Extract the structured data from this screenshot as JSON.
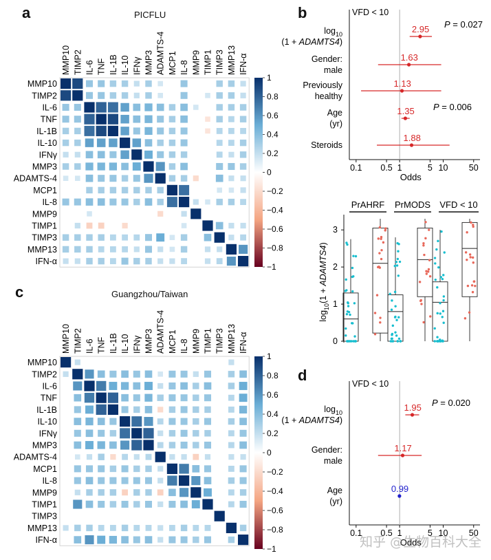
{
  "panels": {
    "a": {
      "letter": "a",
      "title": "PICFLU"
    },
    "b": {
      "letter": "b"
    },
    "c": {
      "letter": "c",
      "title": "Guangzhou/Taiwan"
    },
    "d": {
      "letter": "d"
    }
  },
  "watermark": "知乎 @生物百科大全",
  "chart_data": [
    {
      "id": "heatmap-picflu",
      "type": "heatmap",
      "title": "PICFLU",
      "labels": [
        "MMP10",
        "TIMP2",
        "IL-6",
        "TNF",
        "IL-1B",
        "IL-10",
        "IFNγ",
        "MMP3",
        "ADAMTS-4",
        "MCP1",
        "IL-8",
        "MMP9",
        "TIMP1",
        "TIMP3",
        "MMP13",
        "IFN-α"
      ],
      "scale": {
        "min": -1,
        "max": 1,
        "ticks": [
          "1",
          "0.8",
          "0.6",
          "0.4",
          "0.2",
          "0",
          "−0.2",
          "−0.4",
          "−0.6",
          "−0.8",
          "−1"
        ]
      },
      "colors": {
        "positive": "#08306b",
        "negative": "#67001f",
        "neutral": "#ffffff"
      },
      "values": [
        [
          1,
          0.9,
          0.35,
          0.35,
          0.3,
          0.3,
          0.2,
          0.3,
          0.15,
          0,
          0.35,
          0,
          0,
          0.3,
          0.3,
          0.2
        ],
        [
          0.9,
          1,
          0.35,
          0.35,
          0.3,
          0.3,
          0.2,
          0.3,
          0.15,
          0,
          0.35,
          0,
          0.15,
          0.3,
          0.3,
          0.2
        ],
        [
          0.35,
          0.35,
          1,
          0.8,
          0.75,
          0.55,
          0.4,
          0.45,
          0.4,
          0.3,
          0.4,
          0.15,
          0,
          0.3,
          0.3,
          0.3
        ],
        [
          0.35,
          0.35,
          0.8,
          1,
          0.9,
          0.55,
          0.4,
          0.45,
          0.35,
          0.3,
          0.4,
          0,
          -0.15,
          0.3,
          0.25,
          0.3
        ],
        [
          0.3,
          0.3,
          0.75,
          0.9,
          1,
          0.55,
          0.35,
          0.45,
          0.35,
          0.3,
          0.35,
          0,
          -0.15,
          0.25,
          0.25,
          0.25
        ],
        [
          0.3,
          0.3,
          0.55,
          0.55,
          0.55,
          1,
          0.55,
          0.4,
          0.3,
          0.3,
          0.35,
          0,
          0,
          0.25,
          0.25,
          0.3
        ],
        [
          0.2,
          0.2,
          0.4,
          0.4,
          0.35,
          0.55,
          1,
          0.5,
          0.35,
          0.3,
          0.3,
          0,
          0,
          0.25,
          0.2,
          0.3
        ],
        [
          0.3,
          0.3,
          0.45,
          0.45,
          0.45,
          0.4,
          0.5,
          1,
          0.6,
          0.3,
          0.4,
          0,
          0,
          0.35,
          0.35,
          0.3
        ],
        [
          0.15,
          0.15,
          0.4,
          0.35,
          0.35,
          0.3,
          0.35,
          0.6,
          1,
          0.3,
          0.3,
          -0.2,
          0,
          0.4,
          0.2,
          0.2
        ],
        [
          0,
          0,
          0.3,
          0.3,
          0.3,
          0.3,
          0.3,
          0.3,
          0.3,
          1,
          0.75,
          0,
          0,
          0.15,
          0.15,
          0.2
        ],
        [
          0.35,
          0.35,
          0.4,
          0.4,
          0.35,
          0.35,
          0.3,
          0.4,
          0.3,
          0.75,
          1,
          0.2,
          0.15,
          0.3,
          0.3,
          0.25
        ],
        [
          0,
          0,
          0.15,
          0,
          0,
          0,
          0,
          0,
          -0.2,
          0,
          0.2,
          1,
          0,
          0,
          0,
          0
        ],
        [
          0,
          0.2,
          -0.25,
          -0.25,
          0,
          -0.2,
          0,
          0,
          0,
          0,
          0.15,
          0,
          1,
          0.4,
          0.2,
          0.2
        ],
        [
          0.3,
          0.3,
          0.3,
          0.3,
          0.25,
          0.25,
          0.25,
          0.35,
          0.5,
          0.15,
          0.3,
          0,
          0.4,
          1,
          0.2,
          0.25
        ],
        [
          0.3,
          0.3,
          0.3,
          0.25,
          0.25,
          0.25,
          0.2,
          0.35,
          0.2,
          0.15,
          0.3,
          0,
          0.2,
          0.2,
          1,
          0.6
        ],
        [
          0.2,
          0.2,
          0.3,
          0.3,
          0.25,
          0.35,
          0.3,
          0.3,
          0.2,
          0.2,
          0.25,
          0,
          0.2,
          0.25,
          0.6,
          1
        ]
      ]
    },
    {
      "id": "heatmap-guangzhou",
      "type": "heatmap",
      "title": "Guangzhou/Taiwan",
      "labels": [
        "MMP10",
        "TIMP2",
        "IL-6",
        "TNF",
        "IL-1B",
        "IL-10",
        "IFNγ",
        "MMP3",
        "ADAMTS-4",
        "MCP1",
        "IL-8",
        "MMP9",
        "TIMP1",
        "TIMP3",
        "MMP13",
        "IFN-α"
      ],
      "scale": {
        "min": -1,
        "max": 1,
        "ticks": [
          "1",
          "0.8",
          "0.6",
          "0.4",
          "0.2",
          "0",
          "−0.2",
          "−0.4",
          "−0.6",
          "−0.8",
          "−1"
        ]
      },
      "colors": {
        "positive": "#08306b",
        "negative": "#67001f",
        "neutral": "#ffffff"
      },
      "values": [
        [
          1,
          0.2,
          0,
          0,
          0,
          0,
          0,
          0,
          0,
          0,
          0,
          0,
          0,
          0,
          0.2,
          0
        ],
        [
          0.2,
          1,
          0.6,
          0.4,
          0.35,
          0.4,
          0.35,
          0.4,
          0.15,
          0.35,
          0.35,
          0.2,
          0.35,
          0,
          0.3,
          0.4
        ],
        [
          0,
          0.6,
          1,
          0.7,
          0.5,
          0.45,
          0.4,
          0.5,
          0.2,
          0.35,
          0.4,
          0.3,
          0.4,
          0,
          0.3,
          0.5
        ],
        [
          0,
          0.4,
          0.7,
          1,
          0.8,
          0.4,
          0.35,
          0.45,
          0.3,
          0.35,
          0.35,
          0.3,
          0.35,
          0,
          0.25,
          0.5
        ],
        [
          0,
          0.35,
          0.5,
          0.8,
          1,
          0.35,
          0.3,
          0.4,
          -0.2,
          0.3,
          0.35,
          0.3,
          0.3,
          0,
          0.25,
          0.45
        ],
        [
          0,
          0.4,
          0.45,
          0.4,
          0.35,
          1,
          0.75,
          0.6,
          0.25,
          0.35,
          0.35,
          0.3,
          0.35,
          0,
          0.3,
          0.4
        ],
        [
          0,
          0.35,
          0.4,
          0.35,
          0.3,
          0.75,
          1,
          0.8,
          0.2,
          0.3,
          0.35,
          0.3,
          0.3,
          0,
          0.25,
          0.35
        ],
        [
          0,
          0.4,
          0.5,
          0.45,
          0.4,
          0.6,
          0.8,
          1,
          0.25,
          0.3,
          0.35,
          0.3,
          0.35,
          0,
          0.25,
          0.4
        ],
        [
          0,
          0.15,
          0.2,
          0.3,
          -0.2,
          0.25,
          0.2,
          0.25,
          1,
          0.2,
          0.2,
          -0.25,
          0.2,
          0,
          0.2,
          0.2
        ],
        [
          0,
          0.35,
          0.35,
          0.35,
          0.3,
          0.35,
          0.3,
          0.3,
          0.2,
          1,
          0.7,
          0.4,
          0.35,
          0,
          0.25,
          0.35
        ],
        [
          0,
          0.35,
          0.4,
          0.35,
          0.35,
          0.35,
          0.35,
          0.35,
          0.2,
          0.7,
          1,
          0.6,
          0.4,
          0,
          0.3,
          0.35
        ],
        [
          0,
          0.2,
          0.3,
          0.3,
          0.3,
          -0.25,
          0.3,
          0.3,
          -0.25,
          0.4,
          0.6,
          1,
          0.5,
          0,
          0.25,
          0.3
        ],
        [
          0,
          0.6,
          0.4,
          0.35,
          0.3,
          0.35,
          0.3,
          0.35,
          0.2,
          0.35,
          0.4,
          0.5,
          1,
          0,
          0.25,
          0.35
        ],
        [
          0,
          0,
          0,
          0,
          0,
          0,
          0,
          0,
          0,
          0,
          0,
          0,
          0,
          1,
          0,
          0
        ],
        [
          0.2,
          0.3,
          0.3,
          0.25,
          0.25,
          0.3,
          0.25,
          0.25,
          0.2,
          0.25,
          0.3,
          0.25,
          0.25,
          0,
          1,
          0.3
        ],
        [
          0,
          0.4,
          0.6,
          0.5,
          0.45,
          0.4,
          0.35,
          0.4,
          0.2,
          0.35,
          0.35,
          0.3,
          0.35,
          0,
          0.3,
          1
        ]
      ]
    },
    {
      "id": "forest-picflu",
      "type": "scatter",
      "title": "VFD < 10",
      "xlabel": "Odds",
      "xscale": "log",
      "xlim": [
        0.07,
        70
      ],
      "xticks": [
        "0.1",
        "0.5",
        "1",
        "5",
        "10",
        "50"
      ],
      "rows": [
        {
          "label": [
            "log10",
            "(1 + ADAMTS4)"
          ],
          "or": 2.95,
          "lo": 1.7,
          "hi": 5.5,
          "text": "2.95",
          "color": "#d62728"
        },
        {
          "label": [
            "Gender:",
            "male"
          ],
          "or": 1.63,
          "lo": 0.32,
          "hi": 9,
          "text": "1.63",
          "color": "#d62728"
        },
        {
          "label": [
            "Previously",
            "healthy"
          ],
          "or": 1.13,
          "lo": 0.13,
          "hi": 9,
          "text": "1.13",
          "color": "#d62728"
        },
        {
          "label": [
            "Age",
            "(yr)"
          ],
          "or": 1.35,
          "lo": 1.1,
          "hi": 1.7,
          "text": "1.35",
          "color": "#d62728"
        },
        {
          "label": [
            "Steroids"
          ],
          "or": 1.88,
          "lo": 0.3,
          "hi": 14,
          "text": "1.88",
          "color": "#d62728"
        }
      ],
      "pvalues": [
        "P = 0.027",
        "P = 0.006"
      ]
    },
    {
      "id": "boxplot-picflu",
      "type": "scatter",
      "ylabel": "log10(1 + ADAMTS4)",
      "ylim": [
        0,
        3.3
      ],
      "yticks": [
        "0",
        "1",
        "2",
        "3"
      ],
      "groups": [
        "PrAHRF",
        "PrMODS",
        "VFD < 10"
      ],
      "boxes": [
        {
          "group": "PrAHRF",
          "color": "#17becf",
          "min": 0,
          "q1": 0,
          "median": 0.6,
          "q3": 1.3,
          "max": 2.75
        },
        {
          "group": "PrAHRF",
          "color": "#e8685a",
          "min": 0,
          "q1": 0.22,
          "median": 2.1,
          "q3": 3.05,
          "max": 3.3
        },
        {
          "group": "PrMODS",
          "color": "#17becf",
          "min": 0,
          "q1": 0,
          "median": 0.8,
          "q3": 1.25,
          "max": 2.8
        },
        {
          "group": "PrMODS",
          "color": "#e8685a",
          "min": 0,
          "q1": 1.2,
          "median": 2.2,
          "q3": 3.05,
          "max": 3.3
        },
        {
          "group": "VFD < 10",
          "color": "#17becf",
          "min": 0,
          "q1": 0,
          "median": 1.05,
          "q3": 1.6,
          "max": 3.0
        },
        {
          "group": "VFD < 10",
          "color": "#e8685a",
          "min": 0,
          "q1": 1.2,
          "median": 2.5,
          "q3": 3.2,
          "max": 3.3
        }
      ]
    },
    {
      "id": "forest-guangzhou",
      "type": "scatter",
      "title": "VFD < 10",
      "xlabel": "Odds",
      "xscale": "log",
      "xlim": [
        0.07,
        70
      ],
      "xticks": [
        "0.1",
        "0.5",
        "1",
        "5",
        "10",
        "50"
      ],
      "rows": [
        {
          "label": [
            "log10",
            "(1 + ADAMTS4)"
          ],
          "or": 1.95,
          "lo": 1.35,
          "hi": 2.8,
          "text": "1.95",
          "color": "#d62728"
        },
        {
          "label": [
            "Gender:",
            "male"
          ],
          "or": 1.17,
          "lo": 0.32,
          "hi": 3.2,
          "text": "1.17",
          "color": "#d62728"
        },
        {
          "label": [
            "Age",
            "(yr)"
          ],
          "or": 0.99,
          "lo": 0.97,
          "hi": 1.01,
          "text": "0.99",
          "color": "#1f1fcc"
        }
      ],
      "pvalues": [
        "P = 0.020"
      ]
    }
  ]
}
